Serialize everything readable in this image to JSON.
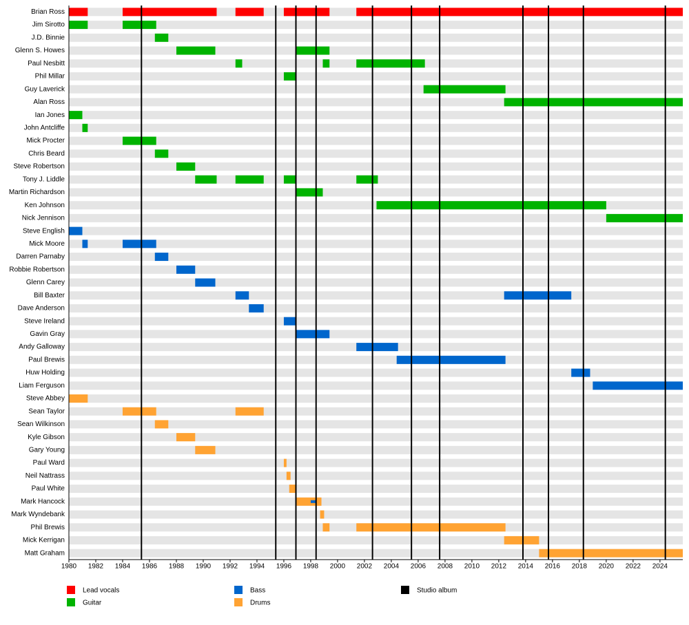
{
  "chart_data": {
    "type": "timeline",
    "xlim": [
      1980,
      2025.7
    ],
    "xticks": [
      1980,
      1982,
      1984,
      1986,
      1988,
      1990,
      1992,
      1994,
      1996,
      1998,
      2000,
      2002,
      2004,
      2006,
      2008,
      2010,
      2012,
      2014,
      2016,
      2018,
      2020,
      2022,
      2024
    ],
    "roles": [
      {
        "name": "Lead vocals",
        "color": "#ff0000"
      },
      {
        "name": "Guitar",
        "color": "#00b300"
      },
      {
        "name": "Bass",
        "color": "#0066cc"
      },
      {
        "name": "Drums",
        "color": "#ffa333"
      }
    ],
    "album_legend": "Studio album",
    "album_color": "#000000",
    "studio_albums": [
      1985.4,
      1995.4,
      1996.9,
      1998.4,
      2002.6,
      2005.5,
      2007.6,
      2013.8,
      2015.7,
      2018.3,
      2024.4
    ],
    "members": [
      {
        "name": "Brian Ross",
        "bars": [
          {
            "role": 0,
            "start": 1980,
            "end": 1981.4
          },
          {
            "role": 0,
            "start": 1984,
            "end": 1991
          },
          {
            "role": 0,
            "start": 1992.4,
            "end": 1994.5
          },
          {
            "role": 0,
            "start": 1996,
            "end": 1999.4
          },
          {
            "role": 0,
            "start": 2001.4,
            "end": 2025.7
          }
        ]
      },
      {
        "name": "Jim Sirotto",
        "bars": [
          {
            "role": 1,
            "start": 1980,
            "end": 1981.4
          },
          {
            "role": 1,
            "start": 1984,
            "end": 1986.5
          }
        ]
      },
      {
        "name": "J.D. Binnie",
        "bars": [
          {
            "role": 1,
            "start": 1986.4,
            "end": 1987.4
          }
        ]
      },
      {
        "name": "Glenn S. Howes",
        "bars": [
          {
            "role": 1,
            "start": 1988,
            "end": 1990.9
          },
          {
            "role": 1,
            "start": 1996.9,
            "end": 1999.4
          }
        ]
      },
      {
        "name": "Paul Nesbitt",
        "bars": [
          {
            "role": 1,
            "start": 1992.4,
            "end": 1992.9
          },
          {
            "role": 1,
            "start": 1998.9,
            "end": 1999.4
          },
          {
            "role": 1,
            "start": 2001.4,
            "end": 2006.5
          }
        ]
      },
      {
        "name": "Phil Millar",
        "bars": [
          {
            "role": 1,
            "start": 1996,
            "end": 1996.9
          }
        ]
      },
      {
        "name": "Guy Laverick",
        "bars": [
          {
            "role": 1,
            "start": 2006.4,
            "end": 2012.5
          }
        ]
      },
      {
        "name": "Alan Ross",
        "bars": [
          {
            "role": 1,
            "start": 2012.4,
            "end": 2025.7
          }
        ]
      },
      {
        "name": "Ian Jones",
        "bars": [
          {
            "role": 1,
            "start": 1980,
            "end": 1981
          }
        ]
      },
      {
        "name": "John Antcliffe",
        "bars": [
          {
            "role": 1,
            "start": 1981,
            "end": 1981.4
          }
        ]
      },
      {
        "name": "Mick Procter",
        "bars": [
          {
            "role": 1,
            "start": 1984,
            "end": 1986.5
          }
        ]
      },
      {
        "name": "Chris Beard",
        "bars": [
          {
            "role": 1,
            "start": 1986.4,
            "end": 1987.4
          }
        ]
      },
      {
        "name": "Steve Robertson",
        "bars": [
          {
            "role": 1,
            "start": 1988,
            "end": 1989.4
          }
        ]
      },
      {
        "name": "Tony J. Liddle",
        "bars": [
          {
            "role": 1,
            "start": 1989.4,
            "end": 1991
          },
          {
            "role": 1,
            "start": 1992.4,
            "end": 1994.5
          },
          {
            "role": 1,
            "start": 1996,
            "end": 1996.9
          },
          {
            "role": 1,
            "start": 2001.4,
            "end": 2003
          }
        ]
      },
      {
        "name": "Martin Richardson",
        "bars": [
          {
            "role": 1,
            "start": 1996.9,
            "end": 1998.9
          }
        ]
      },
      {
        "name": "Ken Johnson",
        "bars": [
          {
            "role": 1,
            "start": 2002.9,
            "end": 2020
          }
        ]
      },
      {
        "name": "Nick Jennison",
        "bars": [
          {
            "role": 1,
            "start": 2020,
            "end": 2025.7
          }
        ]
      },
      {
        "name": "Steve English",
        "bars": [
          {
            "role": 2,
            "start": 1980,
            "end": 1981
          }
        ]
      },
      {
        "name": "Mick Moore",
        "bars": [
          {
            "role": 2,
            "start": 1981,
            "end": 1981.4
          },
          {
            "role": 2,
            "start": 1984,
            "end": 1986.5
          }
        ]
      },
      {
        "name": "Darren Parnaby",
        "bars": [
          {
            "role": 2,
            "start": 1986.4,
            "end": 1987.4
          }
        ]
      },
      {
        "name": "Robbie Robertson",
        "bars": [
          {
            "role": 2,
            "start": 1988,
            "end": 1989.4
          }
        ]
      },
      {
        "name": "Glenn Carey",
        "bars": [
          {
            "role": 2,
            "start": 1989.4,
            "end": 1990.9
          }
        ]
      },
      {
        "name": "Bill Baxter",
        "bars": [
          {
            "role": 2,
            "start": 1992.4,
            "end": 1993.4
          },
          {
            "role": 2,
            "start": 2012.4,
            "end": 2017.4
          }
        ]
      },
      {
        "name": "Dave Anderson",
        "bars": [
          {
            "role": 2,
            "start": 1993.4,
            "end": 1994.5
          }
        ]
      },
      {
        "name": "Steve Ireland",
        "bars": [
          {
            "role": 2,
            "start": 1996,
            "end": 1996.9
          }
        ]
      },
      {
        "name": "Gavin Gray",
        "bars": [
          {
            "role": 2,
            "start": 1996.9,
            "end": 1999.4
          }
        ]
      },
      {
        "name": "Andy Galloway",
        "bars": [
          {
            "role": 2,
            "start": 2001.4,
            "end": 2004.5
          }
        ]
      },
      {
        "name": "Paul Brewis",
        "bars": [
          {
            "role": 2,
            "start": 2004.4,
            "end": 2012.5
          }
        ]
      },
      {
        "name": "Huw Holding",
        "bars": [
          {
            "role": 2,
            "start": 2017.4,
            "end": 2018.8
          }
        ]
      },
      {
        "name": "Liam Ferguson",
        "bars": [
          {
            "role": 2,
            "start": 2019,
            "end": 2025.7
          }
        ]
      },
      {
        "name": "Steve Abbey",
        "bars": [
          {
            "role": 3,
            "start": 1980,
            "end": 1981.4
          }
        ]
      },
      {
        "name": "Sean Taylor",
        "bars": [
          {
            "role": 3,
            "start": 1984,
            "end": 1986.5
          },
          {
            "role": 3,
            "start": 1992.4,
            "end": 1994.5
          }
        ]
      },
      {
        "name": "Sean Wilkinson",
        "bars": [
          {
            "role": 3,
            "start": 1986.4,
            "end": 1987.4
          }
        ]
      },
      {
        "name": "Kyle Gibson",
        "bars": [
          {
            "role": 3,
            "start": 1988,
            "end": 1989.4
          }
        ]
      },
      {
        "name": "Gary Young",
        "bars": [
          {
            "role": 3,
            "start": 1989.4,
            "end": 1990.9
          }
        ]
      },
      {
        "name": "Paul Ward",
        "bars": [
          {
            "role": 3,
            "start": 1996,
            "end": 1996.2
          }
        ]
      },
      {
        "name": "Neil Nattrass",
        "bars": [
          {
            "role": 3,
            "start": 1996.2,
            "end": 1996.5
          }
        ]
      },
      {
        "name": "Paul White",
        "bars": [
          {
            "role": 3,
            "start": 1996.4,
            "end": 1996.9
          }
        ]
      },
      {
        "name": "Mark Hancock",
        "bars": [
          {
            "role": 3,
            "start": 1996.9,
            "end": 1998.8
          },
          {
            "role": 2,
            "start": 1998,
            "end": 1998.4
          }
        ]
      },
      {
        "name": "Mark Wyndebank",
        "bars": [
          {
            "role": 3,
            "start": 1998.7,
            "end": 1999
          }
        ]
      },
      {
        "name": "Phil Brewis",
        "bars": [
          {
            "role": 3,
            "start": 1998.9,
            "end": 1999.4
          },
          {
            "role": 3,
            "start": 2001.4,
            "end": 2012.5
          }
        ]
      },
      {
        "name": "Mick Kerrigan",
        "bars": [
          {
            "role": 3,
            "start": 2012.4,
            "end": 2015
          }
        ]
      },
      {
        "name": "Matt Graham",
        "bars": [
          {
            "role": 3,
            "start": 2015,
            "end": 2025.7
          }
        ]
      }
    ]
  }
}
